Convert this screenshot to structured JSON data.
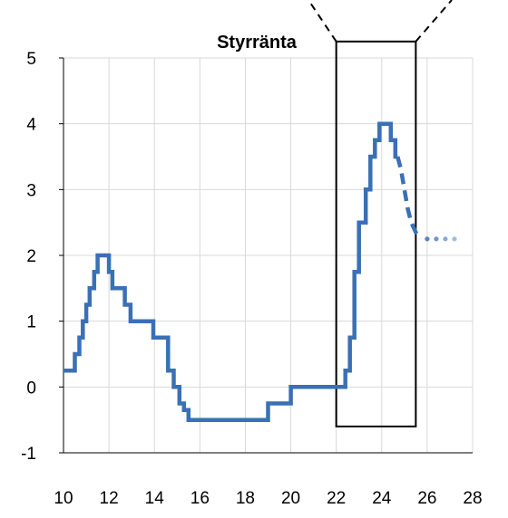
{
  "chart_data": {
    "type": "line",
    "title": "Styrränta",
    "xlabel": "",
    "ylabel": "",
    "xlim": [
      10,
      28
    ],
    "ylim": [
      -1,
      5
    ],
    "x_ticks": [
      10,
      12,
      14,
      16,
      18,
      20,
      22,
      24,
      26,
      28
    ],
    "y_ticks": [
      -1,
      0,
      1,
      2,
      3,
      4,
      5
    ],
    "x_tick_labels": [
      "10",
      "12",
      "14",
      "16",
      "18",
      "20",
      "22",
      "24",
      "26",
      "28"
    ],
    "y_tick_labels": [
      "-1",
      "0",
      "1",
      "2",
      "3",
      "4",
      "5"
    ],
    "grid": true,
    "colors": {
      "series": "#3a70b5",
      "series_forecast_light": "#9dbfe3"
    },
    "series": [
      {
        "style": "step-solid",
        "x": [
          10,
          10.5,
          10.5,
          10.7,
          10.7,
          10.85,
          10.85,
          11.0,
          11.0,
          11.15,
          11.15,
          11.35,
          11.35,
          11.5,
          11.5,
          11.65,
          11.65,
          12.0,
          12.0,
          12.15,
          12.15,
          12.7,
          12.7,
          12.95,
          12.95,
          13.95,
          13.95,
          14.6,
          14.6,
          14.85,
          14.85,
          15.1,
          15.1,
          15.3,
          15.3,
          15.5,
          15.5,
          16.1,
          16.1,
          19.0,
          19.0,
          20.0,
          20.0,
          22.4,
          22.4,
          22.6,
          22.6,
          22.8,
          22.8,
          23.0,
          23.0,
          23.3,
          23.3,
          23.5,
          23.5,
          23.7,
          23.7,
          23.9,
          23.9,
          24.4,
          24.4,
          24.6,
          24.6,
          24.7
        ],
        "y": [
          0.25,
          0.25,
          0.5,
          0.5,
          0.75,
          0.75,
          1.0,
          1.0,
          1.25,
          1.25,
          1.5,
          1.5,
          1.75,
          1.75,
          2.0,
          2.0,
          2.0,
          2.0,
          1.75,
          1.75,
          1.5,
          1.5,
          1.25,
          1.25,
          1.0,
          1.0,
          0.75,
          0.75,
          0.25,
          0.25,
          0.0,
          0.0,
          -0.25,
          -0.25,
          -0.35,
          -0.35,
          -0.5,
          -0.5,
          -0.5,
          -0.5,
          -0.25,
          -0.25,
          0.0,
          0.0,
          0.25,
          0.25,
          0.75,
          0.75,
          1.75,
          1.75,
          2.5,
          2.5,
          3.0,
          3.0,
          3.5,
          3.5,
          3.75,
          3.75,
          4.0,
          4.0,
          3.75,
          3.75,
          3.5,
          3.5
        ]
      },
      {
        "style": "dashed",
        "x": [
          24.7,
          24.85,
          25.0,
          25.15,
          25.3,
          25.5,
          25.7
        ],
        "y": [
          3.5,
          3.3,
          3.0,
          2.7,
          2.5,
          2.35,
          2.25
        ]
      },
      {
        "style": "dotted",
        "x": [
          25.7,
          26.0,
          26.4,
          26.8,
          27.2
        ],
        "y": [
          2.25,
          2.25,
          2.25,
          2.25,
          2.25
        ]
      }
    ],
    "annotations": [
      {
        "type": "rectangle",
        "x_range": [
          22.0,
          25.5
        ],
        "y_range": [
          -0.6,
          5.25
        ]
      },
      {
        "type": "zoom-lines",
        "from": "rectangle-top-corners",
        "direction": "up-outward"
      }
    ]
  }
}
